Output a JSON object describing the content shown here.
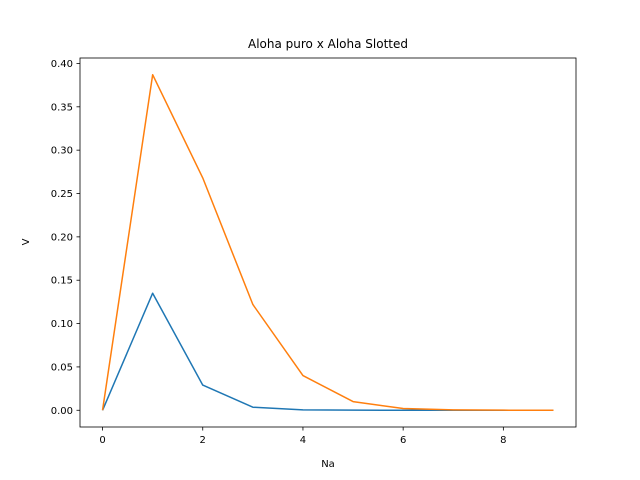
{
  "chart_data": {
    "type": "line",
    "title": "Aloha puro x Aloha Slotted",
    "xlabel": "Na",
    "ylabel": "V",
    "xlim": [
      -0.45,
      9.45
    ],
    "ylim": [
      -0.0193,
      0.4063
    ],
    "x_ticks": [
      0,
      2,
      4,
      6,
      8
    ],
    "x_tick_labels": [
      "0",
      "2",
      "4",
      "6",
      "8"
    ],
    "y_ticks": [
      0.0,
      0.05,
      0.1,
      0.15,
      0.2,
      0.25,
      0.3,
      0.35,
      0.4
    ],
    "y_tick_labels": [
      "0.00",
      "0.05",
      "0.10",
      "0.15",
      "0.20",
      "0.25",
      "0.30",
      "0.35",
      "0.40"
    ],
    "grid": false,
    "x": [
      0,
      1,
      2,
      3,
      4,
      5,
      6,
      7,
      8,
      9
    ],
    "series": [
      {
        "color": "#1f77b4",
        "values": [
          0.0,
          0.135,
          0.029,
          0.0035,
          0.0005,
          0.0001,
          0.0,
          0.0,
          0.0,
          0.0
        ]
      },
      {
        "color": "#ff7f0e",
        "values": [
          0.0,
          0.387,
          0.268,
          0.122,
          0.04,
          0.01,
          0.002,
          0.0005,
          0.0001,
          0.0
        ]
      }
    ]
  }
}
